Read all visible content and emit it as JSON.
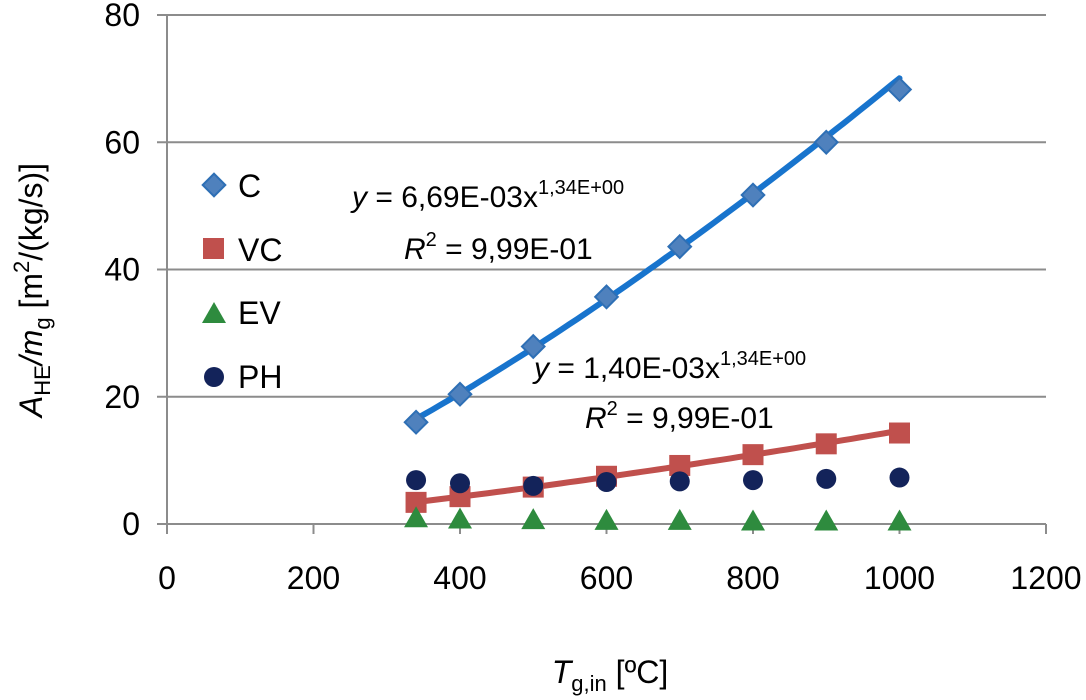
{
  "chart_data": {
    "type": "scatter",
    "x_axis": {
      "label": "T",
      "label_sub": "g,in",
      "label_unit": " [ºC]",
      "range": [
        0,
        1200
      ],
      "ticks": [
        "0",
        "200",
        "400",
        "600",
        "800",
        "1000",
        "1200"
      ]
    },
    "y_axis": {
      "label_main": "A",
      "label_sub1": "HE",
      "label_mid": "/m",
      "label_sub2": "g",
      "label_unit_pre": " [m",
      "label_unit_sup": "2",
      "label_unit_post": "/(kg/s)]",
      "range": [
        0,
        80
      ],
      "ticks": [
        "0",
        "20",
        "40",
        "60",
        "80"
      ]
    },
    "grid": "horizontal",
    "legend_position": "left",
    "series": [
      {
        "name": "C",
        "marker": "diamond",
        "color": "#4F81BD",
        "trendline_color": "#1874CD",
        "x": [
          340,
          400,
          500,
          600,
          700,
          800,
          900,
          1000
        ],
        "y": [
          16.0,
          20.4,
          27.9,
          35.7,
          43.6,
          51.7,
          60.0,
          68.3
        ],
        "trendline": {
          "type": "power",
          "a": 0.00669,
          "b": 1.34
        },
        "equation": {
          "y_text": "y",
          "eq_text": " = 6,69E-03x",
          "exp_text": "1,34E+00",
          "r2_label": "R",
          "r2_sup": "2",
          "r2_value": " = 9,99E-01"
        }
      },
      {
        "name": "VC",
        "marker": "square",
        "color": "#C0504D",
        "trendline_color": "#C0504D",
        "x": [
          340,
          400,
          500,
          600,
          700,
          800,
          900,
          1000
        ],
        "y": [
          3.4,
          4.3,
          5.8,
          7.5,
          9.2,
          10.9,
          12.6,
          14.3
        ],
        "trendline": {
          "type": "power",
          "a": 0.0014,
          "b": 1.34
        },
        "equation": {
          "y_text": "y",
          "eq_text": " = 1,40E-03x",
          "exp_text": "1,34E+00",
          "r2_label": "R",
          "r2_sup": "2",
          "r2_value": " = 9,99E-01"
        }
      },
      {
        "name": "EV",
        "marker": "triangle",
        "color": "#2E8B3E",
        "x": [
          340,
          400,
          500,
          600,
          700,
          800,
          900,
          1000
        ],
        "y": [
          0.9,
          0.7,
          0.6,
          0.5,
          0.5,
          0.4,
          0.4,
          0.4
        ]
      },
      {
        "name": "PH",
        "marker": "circle",
        "color": "#13235A",
        "x": [
          340,
          400,
          500,
          600,
          700,
          800,
          900,
          1000
        ],
        "y": [
          6.9,
          6.4,
          6.0,
          6.6,
          6.7,
          6.9,
          7.1,
          7.3
        ]
      }
    ]
  }
}
